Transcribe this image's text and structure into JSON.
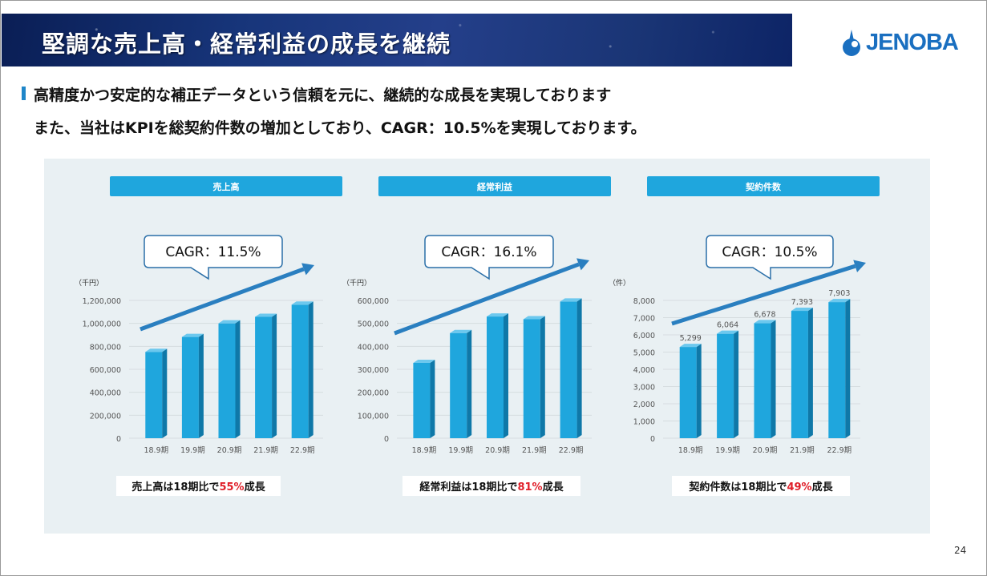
{
  "title": "堅調な売上高・経常利益の成長を継続",
  "logo_text": "JENOBA",
  "subtitle_line1": "高精度かつ安定的な補正データという信頼を元に、継続的な成長を実現しております",
  "subtitle_line2": "また、当社はKPIを総契約件数の増加としており、CAGR：10.5%を実現しております。",
  "page_number": "24",
  "colors": {
    "bar": "#1fa6dd",
    "bar_side": "#0f78a8",
    "arrow": "#2a7fc0",
    "header": "#1fa6dd",
    "highlight": "#e0202a"
  },
  "chart_data": [
    {
      "type": "bar",
      "title": "売上高",
      "unit": "（千円）",
      "categories": [
        "18.9期",
        "19.9期",
        "20.9期",
        "21.9期",
        "22.9期"
      ],
      "values": [
        752000,
        882000,
        1000000,
        1057000,
        1163000
      ],
      "ylim": [
        0,
        1200000
      ],
      "yticks": [
        "0",
        "200,000",
        "400,000",
        "600,000",
        "800,000",
        "1,000,000",
        "1,200,000"
      ],
      "cagr_label": "CAGR：11.5%",
      "note_pre": "売上高は18期比で",
      "note_pct": "55%",
      "note_post": "成長",
      "data_labels": []
    },
    {
      "type": "bar",
      "title": "経常利益",
      "unit": "（千円）",
      "categories": [
        "18.9期",
        "19.9期",
        "20.9期",
        "21.9期",
        "22.9期"
      ],
      "values": [
        328000,
        458000,
        530000,
        518000,
        595000
      ],
      "ylim": [
        0,
        600000
      ],
      "yticks": [
        "0",
        "100,000",
        "200,000",
        "300,000",
        "400,000",
        "500,000",
        "600,000"
      ],
      "cagr_label": "CAGR：16.1%",
      "note_pre": "経常利益は18期比で",
      "note_pct": "81%",
      "note_post": "成長",
      "data_labels": []
    },
    {
      "type": "bar",
      "title": "契約件数",
      "unit": "（件）",
      "categories": [
        "18.9期",
        "19.9期",
        "20.9期",
        "21.9期",
        "22.9期"
      ],
      "values": [
        5299,
        6064,
        6678,
        7393,
        7903
      ],
      "ylim": [
        0,
        8000
      ],
      "yticks": [
        "0",
        "1,000",
        "2,000",
        "3,000",
        "4,000",
        "5,000",
        "6,000",
        "7,000",
        "8,000"
      ],
      "cagr_label": "CAGR：10.5%",
      "note_pre": "契約件数は18期比で",
      "note_pct": "49%",
      "note_post": "成長",
      "data_labels": [
        "5,299",
        "6,064",
        "6,678",
        "7,393",
        "7,903"
      ]
    }
  ]
}
